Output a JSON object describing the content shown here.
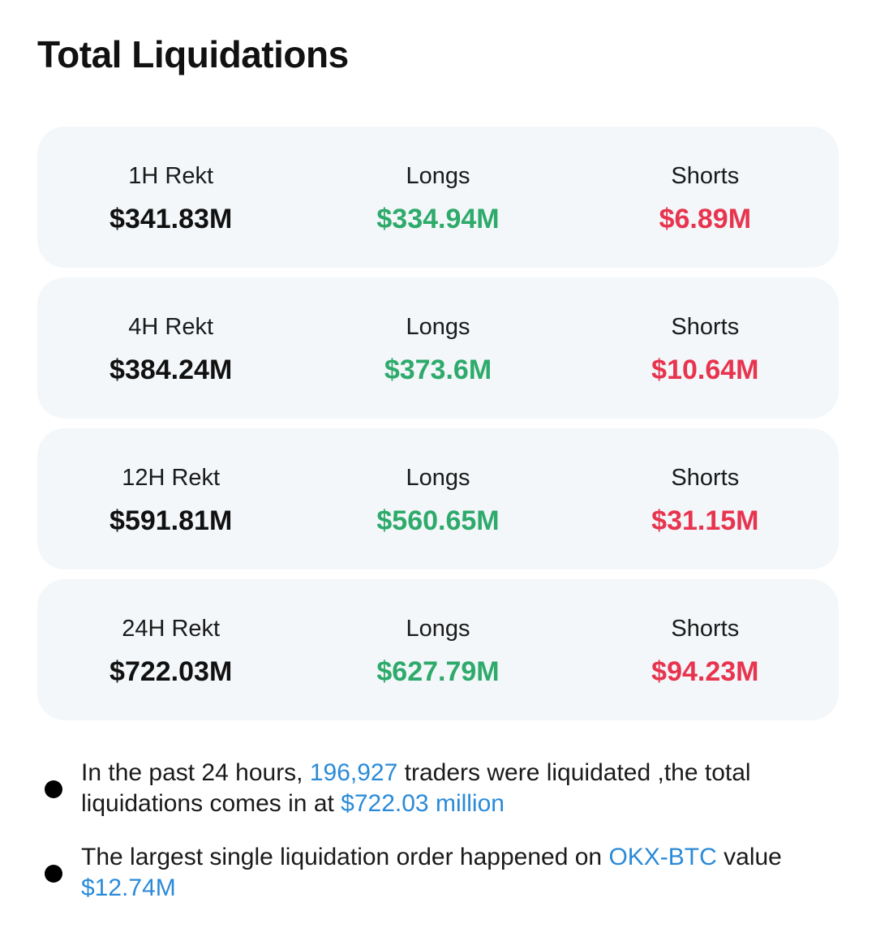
{
  "title": "Total Liquidations",
  "colors": {
    "long": "#2eaa6b",
    "short": "#e8344e",
    "link": "#2a8ad8"
  },
  "cards": [
    {
      "period_label": "1H Rekt",
      "total": "$341.83M",
      "longs_label": "Longs",
      "longs": "$334.94M",
      "shorts_label": "Shorts",
      "shorts": "$6.89M"
    },
    {
      "period_label": "4H Rekt",
      "total": "$384.24M",
      "longs_label": "Longs",
      "longs": "$373.6M",
      "shorts_label": "Shorts",
      "shorts": "$10.64M"
    },
    {
      "period_label": "12H Rekt",
      "total": "$591.81M",
      "longs_label": "Longs",
      "longs": "$560.65M",
      "shorts_label": "Shorts",
      "shorts": "$31.15M"
    },
    {
      "period_label": "24H Rekt",
      "total": "$722.03M",
      "longs_label": "Longs",
      "longs": "$627.79M",
      "shorts_label": "Shorts",
      "shorts": "$94.23M"
    }
  ],
  "summary": {
    "line1": {
      "prefix": "In the past 24 hours, ",
      "traders_count": "196,927",
      "middle": " traders were liquidated ,the total liquidations comes in at ",
      "total_amount": "$722.03 million"
    },
    "line2": {
      "prefix": "The largest single liquidation order happened on ",
      "pair": "OKX-BTC",
      "middle": " value ",
      "amount": "$12.74M"
    }
  }
}
